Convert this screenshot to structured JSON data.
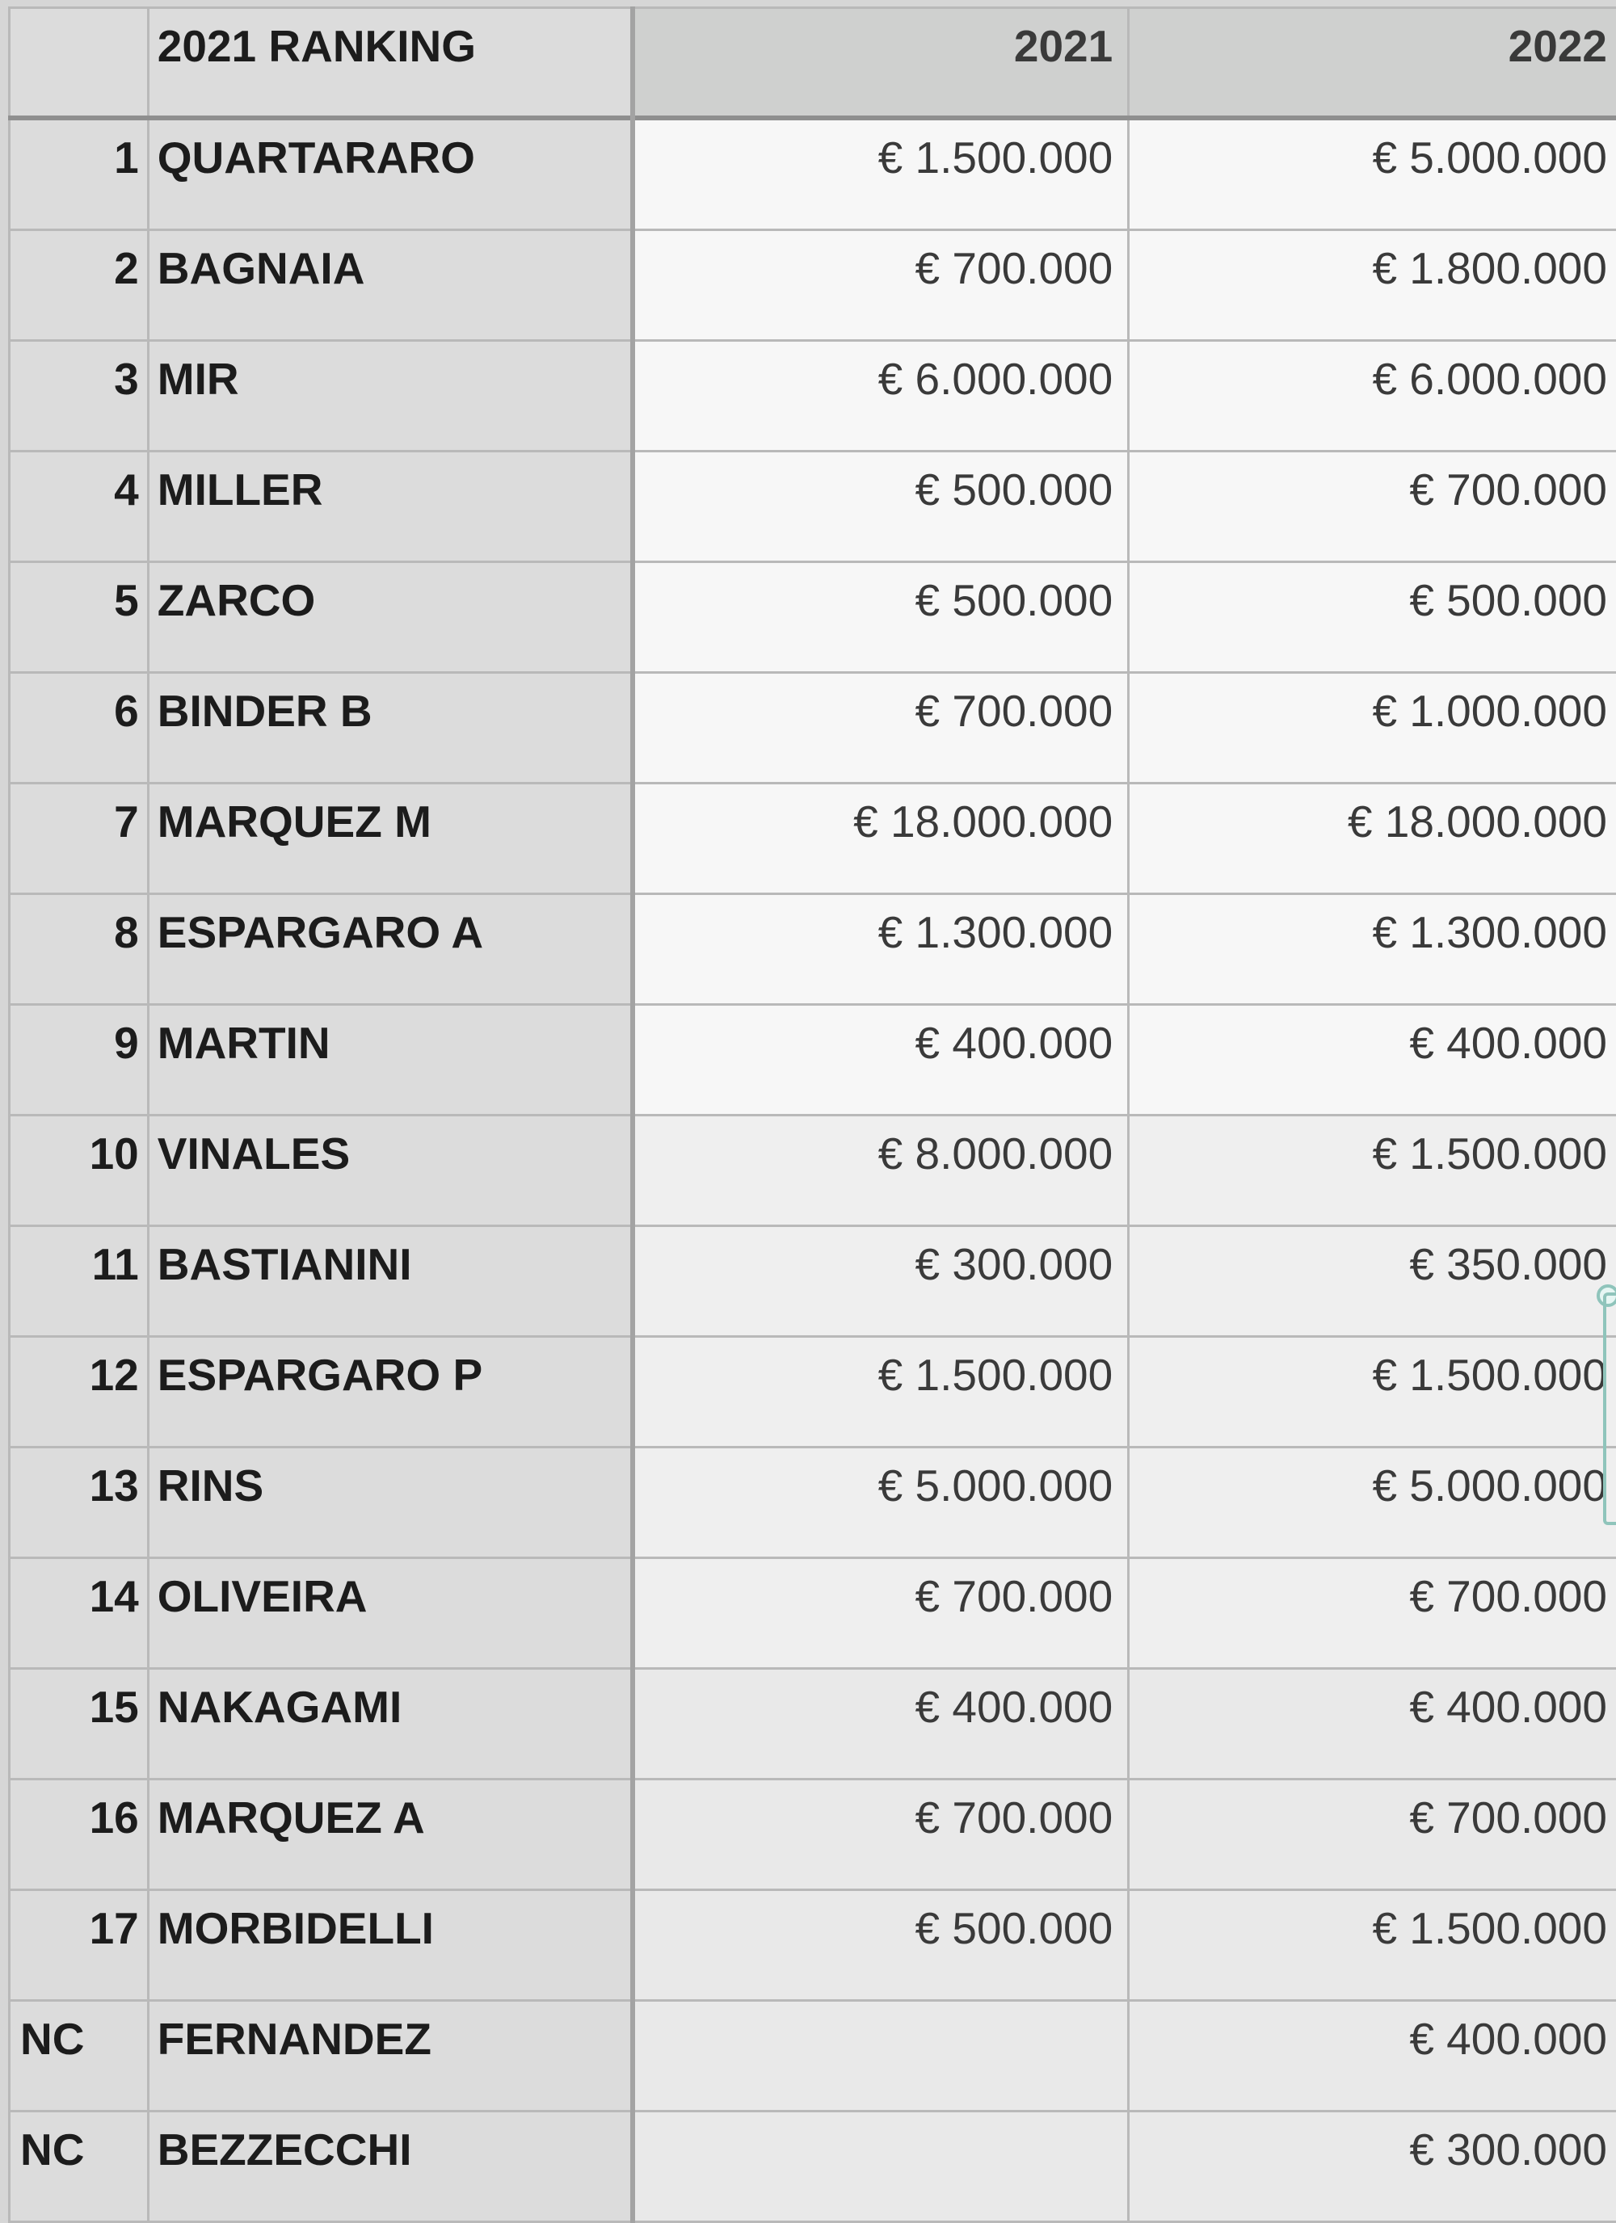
{
  "table": {
    "headers": [
      "",
      "2021 RANKING",
      "2021",
      "2022"
    ],
    "rows": [
      {
        "rank": "1",
        "rider": "QUARTARARO",
        "y2021": "€ 1.500.000",
        "y2022": "€ 5.000.000"
      },
      {
        "rank": "2",
        "rider": "BAGNAIA",
        "y2021": "€ 700.000",
        "y2022": "€ 1.800.000"
      },
      {
        "rank": "3",
        "rider": "MIR",
        "y2021": "€ 6.000.000",
        "y2022": "€ 6.000.000"
      },
      {
        "rank": "4",
        "rider": "MILLER",
        "y2021": "€ 500.000",
        "y2022": "€ 700.000"
      },
      {
        "rank": "5",
        "rider": "ZARCO",
        "y2021": "€ 500.000",
        "y2022": "€ 500.000"
      },
      {
        "rank": "6",
        "rider": "BINDER B",
        "y2021": "€ 700.000",
        "y2022": "€ 1.000.000"
      },
      {
        "rank": "7",
        "rider": "MARQUEZ M",
        "y2021": "€ 18.000.000",
        "y2022": "€ 18.000.000"
      },
      {
        "rank": "8",
        "rider": "ESPARGARO A",
        "y2021": "€ 1.300.000",
        "y2022": "€ 1.300.000"
      },
      {
        "rank": "9",
        "rider": "MARTIN",
        "y2021": "€ 400.000",
        "y2022": "€ 400.000"
      },
      {
        "rank": "10",
        "rider": "VINALES",
        "y2021": "€ 8.000.000",
        "y2022": "€ 1.500.000"
      },
      {
        "rank": "11",
        "rider": "BASTIANINI",
        "y2021": "€ 300.000",
        "y2022": "€ 350.000"
      },
      {
        "rank": "12",
        "rider": "ESPARGARO P",
        "y2021": "€ 1.500.000",
        "y2022": "€ 1.500.000"
      },
      {
        "rank": "13",
        "rider": "RINS",
        "y2021": "€ 5.000.000",
        "y2022": "€ 5.000.000"
      },
      {
        "rank": "14",
        "rider": "OLIVEIRA",
        "y2021": "€ 700.000",
        "y2022": "€ 700.000"
      },
      {
        "rank": "15",
        "rider": "NAKAGAMI",
        "y2021": "€ 400.000",
        "y2022": "€ 400.000"
      },
      {
        "rank": "16",
        "rider": "MARQUEZ A",
        "y2021": "€ 700.000",
        "y2022": "€ 700.000"
      },
      {
        "rank": "17",
        "rider": "MORBIDELLI",
        "y2021": "€ 500.000",
        "y2022": "€ 1.500.000"
      },
      {
        "rank": "NC",
        "rider": "FERNANDEZ",
        "y2021": "",
        "y2022": "€ 400.000"
      },
      {
        "rank": "NC",
        "rider": "BEZZECCHI",
        "y2021": "",
        "y2022": "€ 300.000"
      }
    ]
  },
  "colors": {
    "header_bg": "#cfd0cf",
    "label_bg": "#dcdcdc",
    "cell_bg": "#f7f7f7",
    "selection": "#8fc4bb"
  }
}
